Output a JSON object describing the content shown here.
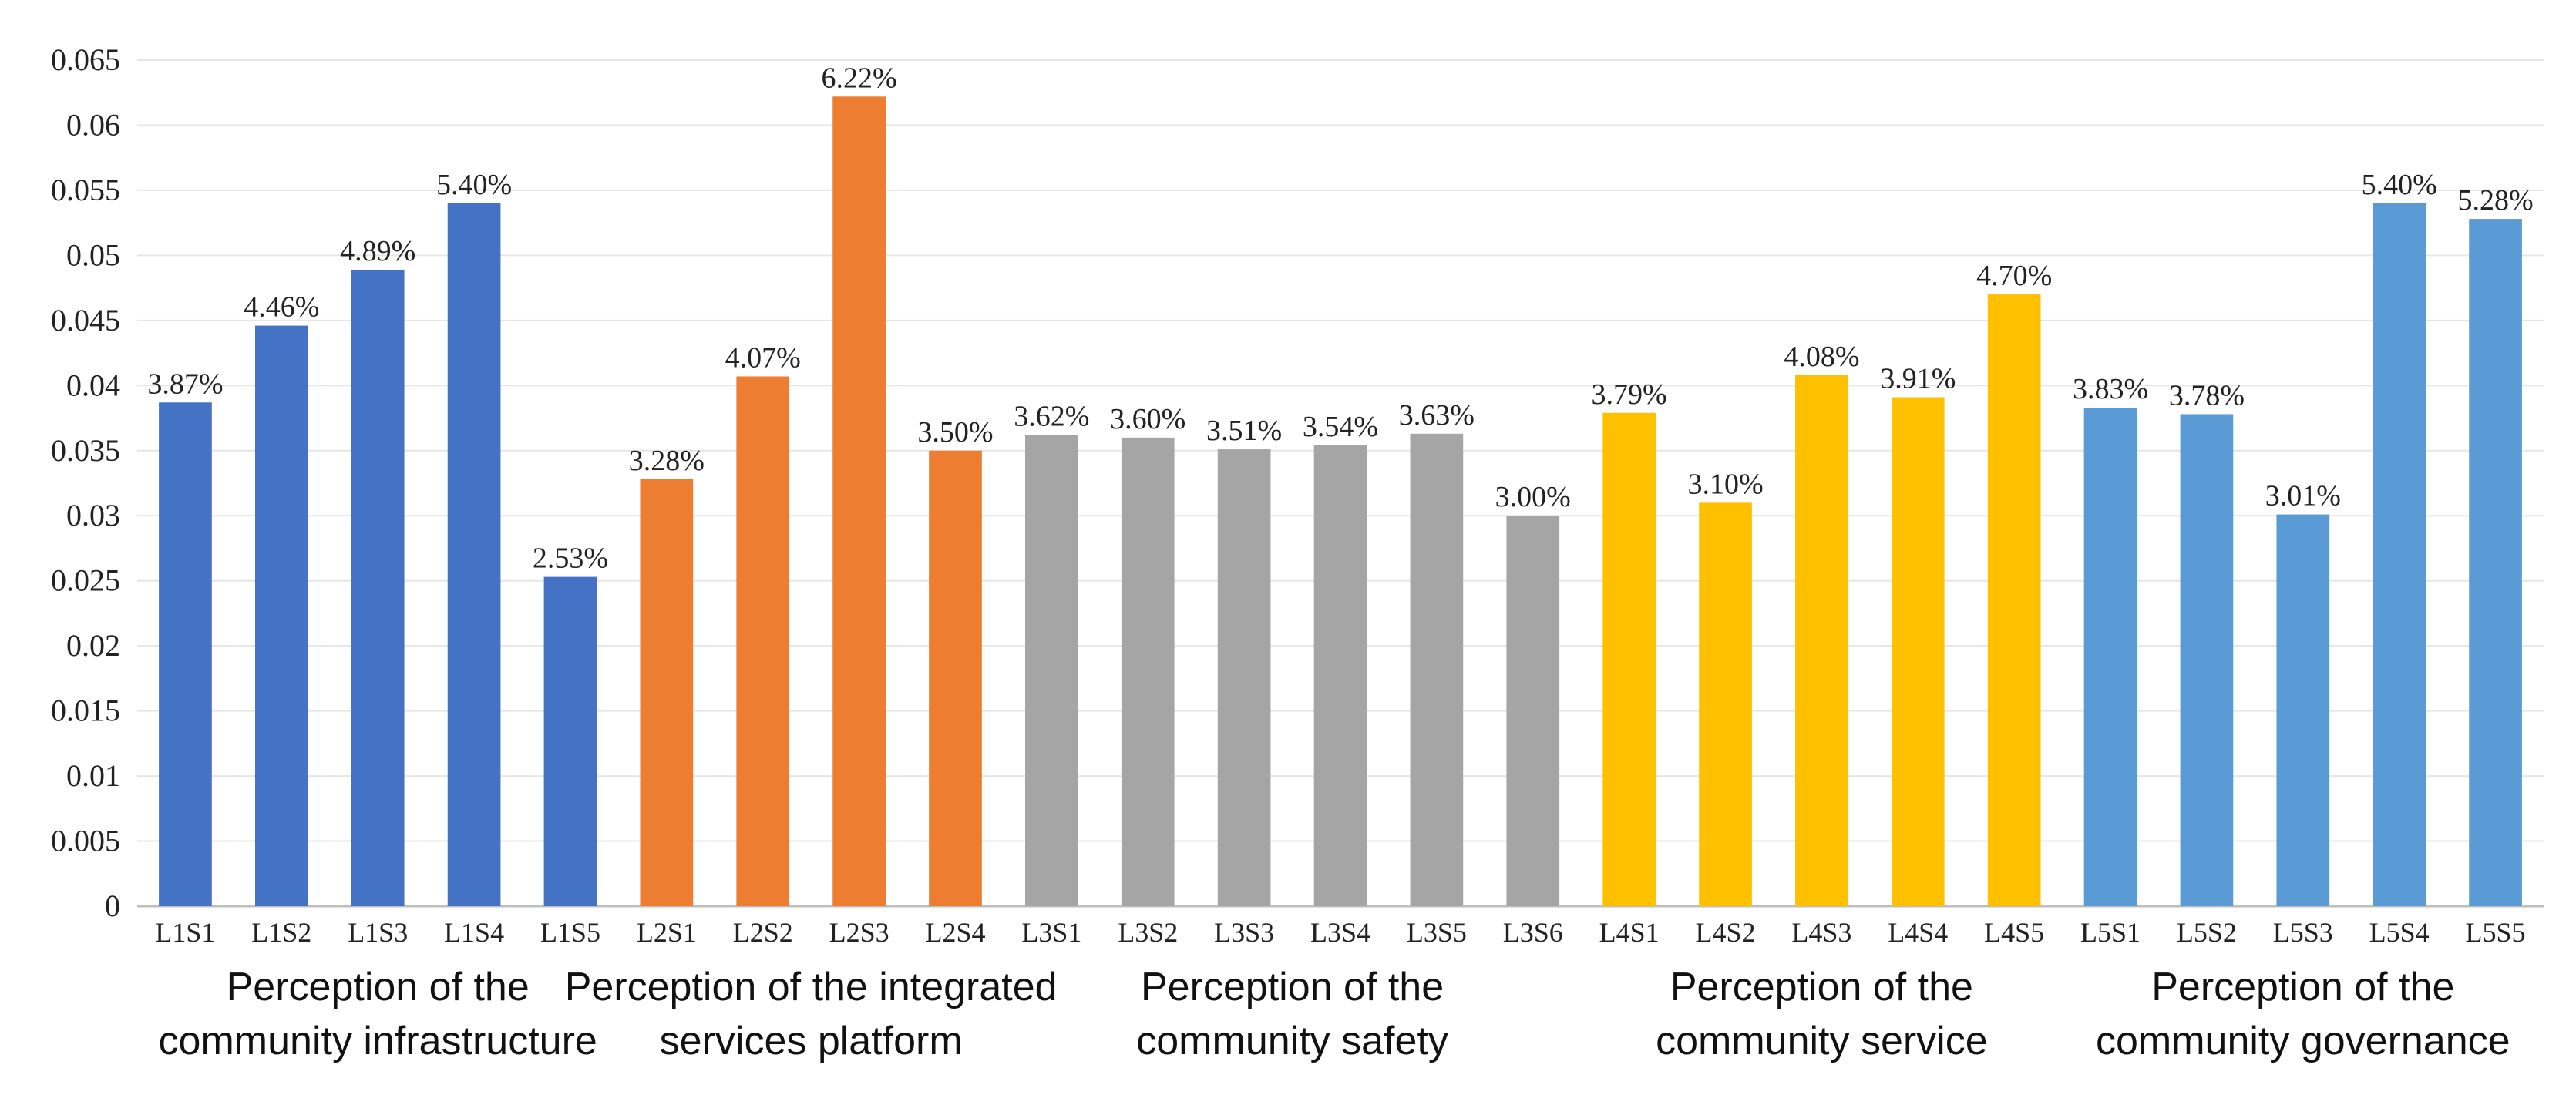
{
  "chart_data": {
    "type": "bar",
    "title": "",
    "xlabel": "",
    "ylabel": "",
    "ylim": [
      0,
      0.065
    ],
    "yticks": [
      "0",
      "0.005",
      "0.01",
      "0.015",
      "0.02",
      "0.025",
      "0.03",
      "0.035",
      "0.04",
      "0.045",
      "0.05",
      "0.055",
      "0.06",
      "0.065"
    ],
    "ytick_values": [
      0,
      0.005,
      0.01,
      0.015,
      0.02,
      0.025,
      0.03,
      0.035,
      0.04,
      0.045,
      0.05,
      0.055,
      0.06,
      0.065
    ],
    "grid": true,
    "legend": "none",
    "colors": {
      "group1": "#4472C4",
      "group2": "#ED7D31",
      "group3": "#A5A5A5",
      "group4": "#FFC000",
      "group5": "#5B9BD5",
      "grid": "#E6E6E6",
      "axis": "#BFBFBF"
    },
    "categories": [
      "L1S1",
      "L1S2",
      "L1S3",
      "L1S4",
      "L1S5",
      "L2S1",
      "L2S2",
      "L2S3",
      "L2S4",
      "L3S1",
      "L3S2",
      "L3S3",
      "L3S4",
      "L3S5",
      "L3S6",
      "L4S1",
      "L4S2",
      "L4S3",
      "L4S4",
      "L4S5",
      "L5S1",
      "L5S2",
      "L5S3",
      "L5S4",
      "L5S5"
    ],
    "values": [
      0.0387,
      0.0446,
      0.0489,
      0.054,
      0.0253,
      0.0328,
      0.0407,
      0.0622,
      0.035,
      0.0362,
      0.036,
      0.0351,
      0.0354,
      0.0363,
      0.03,
      0.0379,
      0.031,
      0.0408,
      0.0391,
      0.047,
      0.0383,
      0.0378,
      0.0301,
      0.054,
      0.0528
    ],
    "data_labels": [
      "3.87%",
      "4.46%",
      "4.89%",
      "5.40%",
      "2.53%",
      "3.28%",
      "4.07%",
      "6.22%",
      "3.50%",
      "3.62%",
      "3.60%",
      "3.51%",
      "3.54%",
      "3.63%",
      "3.00%",
      "3.79%",
      "3.10%",
      "4.08%",
      "3.91%",
      "4.70%",
      "3.83%",
      "3.78%",
      "3.01%",
      "5.40%",
      "5.28%"
    ],
    "groups": [
      {
        "line1": "Perception of the",
        "line2": "community infrastructure",
        "start": 0,
        "count": 5,
        "color_key": "group1"
      },
      {
        "line1": "Perception of the integrated",
        "line2": "services platform",
        "start": 5,
        "count": 4,
        "color_key": "group2"
      },
      {
        "line1": "Perception of the",
        "line2": "community safety",
        "start": 9,
        "count": 6,
        "color_key": "group3"
      },
      {
        "line1": "Perception of the",
        "line2": "community service",
        "start": 15,
        "count": 5,
        "color_key": "group4"
      },
      {
        "line1": "Perception of the",
        "line2": "community governance",
        "start": 20,
        "count": 5,
        "color_key": "group5"
      }
    ]
  }
}
